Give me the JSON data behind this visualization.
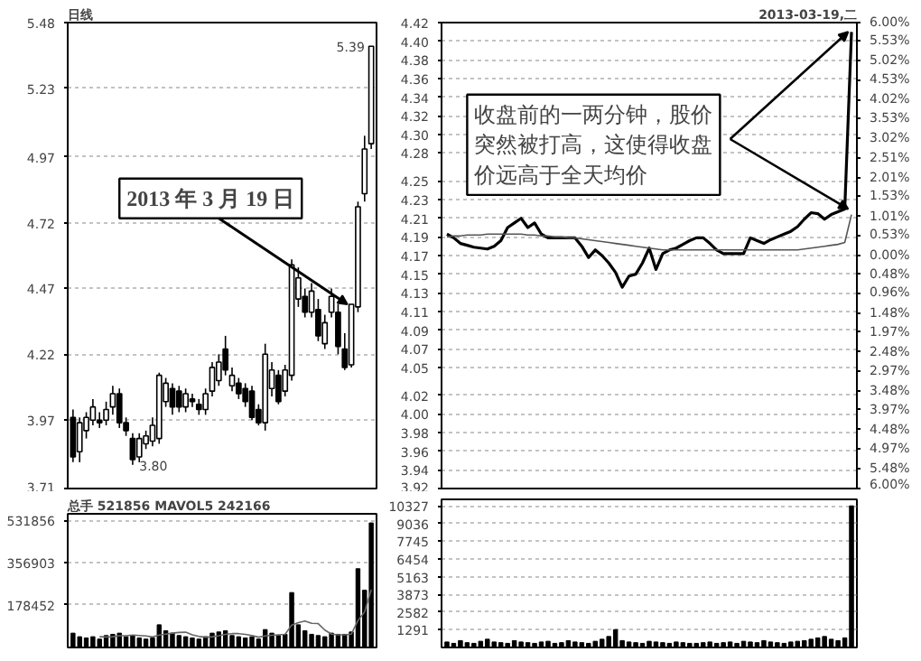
{
  "chart_data": [
    {
      "type": "candlestick",
      "title": "日线",
      "categories": [
        null,
        null,
        null,
        null,
        null,
        null,
        null,
        null,
        null,
        null,
        null,
        null,
        null,
        null,
        null,
        null,
        null,
        null,
        null,
        null,
        null,
        null,
        null,
        null,
        null,
        null,
        null,
        null,
        null,
        null,
        null,
        null,
        null,
        null,
        null,
        null,
        null,
        null,
        null,
        null,
        null,
        null,
        null,
        null,
        null,
        null
      ],
      "ohlc": [
        [
          3.98,
          4.01,
          3.81,
          3.83
        ],
        [
          3.85,
          3.98,
          3.81,
          3.96
        ],
        [
          3.93,
          4.0,
          3.9,
          3.98
        ],
        [
          3.97,
          4.05,
          3.95,
          4.02
        ],
        [
          3.97,
          4.0,
          3.94,
          3.96
        ],
        [
          3.97,
          4.04,
          3.95,
          4.01
        ],
        [
          4.02,
          4.1,
          3.99,
          4.07
        ],
        [
          4.07,
          4.09,
          3.94,
          3.96
        ],
        [
          3.96,
          3.98,
          3.91,
          3.93
        ],
        [
          3.9,
          3.92,
          3.8,
          3.82
        ],
        [
          3.83,
          3.92,
          3.81,
          3.9
        ],
        [
          3.88,
          3.93,
          3.86,
          3.91
        ],
        [
          3.89,
          3.98,
          3.87,
          3.95
        ],
        [
          3.9,
          4.15,
          3.88,
          4.14
        ],
        [
          4.04,
          4.13,
          4.02,
          4.11
        ],
        [
          4.09,
          4.11,
          3.99,
          4.02
        ],
        [
          4.08,
          4.1,
          4.0,
          4.02
        ],
        [
          4.02,
          4.09,
          4.0,
          4.07
        ],
        [
          4.05,
          4.07,
          4.02,
          4.04
        ],
        [
          4.03,
          4.05,
          3.99,
          4.01
        ],
        [
          4.01,
          4.09,
          3.99,
          4.07
        ],
        [
          4.08,
          4.19,
          4.06,
          4.17
        ],
        [
          4.12,
          4.22,
          4.1,
          4.19
        ],
        [
          4.24,
          4.29,
          4.14,
          4.16
        ],
        [
          4.1,
          4.17,
          4.08,
          4.14
        ],
        [
          4.11,
          4.13,
          4.05,
          4.07
        ],
        [
          4.09,
          4.11,
          4.02,
          4.04
        ],
        [
          4.08,
          4.1,
          3.97,
          3.98
        ],
        [
          4.01,
          4.03,
          3.95,
          3.96
        ],
        [
          3.96,
          4.26,
          3.93,
          4.22
        ],
        [
          4.09,
          4.19,
          4.06,
          4.16
        ],
        [
          4.14,
          4.16,
          4.03,
          4.04
        ],
        [
          4.08,
          4.18,
          4.06,
          4.16
        ],
        [
          4.14,
          4.58,
          4.12,
          4.56
        ],
        [
          4.43,
          4.55,
          4.4,
          4.51
        ],
        [
          4.44,
          4.47,
          4.36,
          4.38
        ],
        [
          4.38,
          4.49,
          4.36,
          4.46
        ],
        [
          4.39,
          4.43,
          4.27,
          4.29
        ],
        [
          4.26,
          4.37,
          4.24,
          4.34
        ],
        [
          4.38,
          4.47,
          4.36,
          4.44
        ],
        [
          4.38,
          4.41,
          4.22,
          4.25
        ],
        [
          4.24,
          4.3,
          4.16,
          4.17
        ],
        [
          4.18,
          4.41,
          4.17,
          4.41
        ],
        [
          4.4,
          4.8,
          4.38,
          4.78
        ],
        [
          4.83,
          5.05,
          4.8,
          5.0
        ],
        [
          5.02,
          5.39,
          5.0,
          5.39
        ]
      ],
      "color": "#000000",
      "ylim": [
        3.71,
        5.48
      ],
      "yticks": [
        3.71,
        3.97,
        4.22,
        4.47,
        4.72,
        4.97,
        5.23,
        5.48
      ],
      "grid": "y",
      "tick_labels": "y",
      "annotations": [
        "2013 年 3 月 19 日",
        "5.39",
        "3.80"
      ]
    },
    {
      "type": "bar",
      "title": "总手 521856 MAVOL5 242166",
      "categories": [
        null,
        null,
        null,
        null,
        null,
        null,
        null,
        null,
        null,
        null,
        null,
        null,
        null,
        null,
        null,
        null,
        null,
        null,
        null,
        null,
        null,
        null,
        null,
        null,
        null,
        null,
        null,
        null,
        null,
        null,
        null,
        null,
        null,
        null,
        null,
        null,
        null,
        null,
        null,
        null,
        null,
        null,
        null,
        null,
        null,
        null
      ],
      "series": [
        {
          "type": "bar",
          "color": "#000000",
          "values": [
            60000,
            45000,
            40000,
            45000,
            35000,
            50000,
            55000,
            60000,
            45000,
            50000,
            40000,
            35000,
            40000,
            95000,
            70000,
            60000,
            50000,
            45000,
            40000,
            35000,
            45000,
            60000,
            65000,
            70000,
            50000,
            45000,
            40000,
            45000,
            35000,
            75000,
            60000,
            50000,
            55000,
            230000,
            95000,
            70000,
            55000,
            50000,
            45000,
            60000,
            55000,
            55000,
            65000,
            330000,
            240000,
            521856
          ]
        },
        {
          "type": "line",
          "color": "#666666",
          "values": [
            null,
            null,
            null,
            null,
            45000,
            44000,
            45000,
            49000,
            49000,
            52000,
            50000,
            48000,
            44000,
            52000,
            56000,
            60000,
            63000,
            64000,
            53000,
            46000,
            43000,
            45000,
            49000,
            55000,
            58000,
            58000,
            55000,
            50000,
            43000,
            48000,
            51000,
            53000,
            55000,
            94000,
            104000,
            111000,
            101000,
            100000,
            73000,
            56000,
            53000,
            53000,
            56000,
            113000,
            149000,
            242166
          ]
        }
      ],
      "ylim": [
        0,
        560000
      ],
      "yticks": [
        178452,
        356903,
        531856
      ],
      "grid": "y",
      "tick_labels": "y"
    },
    {
      "type": "line",
      "title": "2013-03-19,二",
      "categories": [
        null,
        null,
        null,
        null,
        null,
        null,
        null,
        null,
        null,
        null,
        null,
        null,
        null,
        null,
        null,
        null,
        null,
        null,
        null,
        null,
        null,
        null,
        null,
        null,
        null,
        null,
        null,
        null,
        null,
        null,
        null,
        null,
        null,
        null,
        null,
        null,
        null,
        null,
        null,
        null,
        null,
        null,
        null,
        null,
        null,
        null,
        null,
        null,
        null,
        null,
        null,
        null,
        null,
        null,
        null,
        null,
        null,
        null,
        null,
        null,
        null
      ],
      "series": [
        {
          "color": "#000000",
          "values": [
            4.193,
            4.189,
            4.183,
            4.181,
            4.179,
            4.178,
            4.177,
            4.18,
            4.186,
            4.2,
            4.205,
            4.21,
            4.2,
            4.205,
            4.193,
            4.189,
            4.189,
            4.189,
            4.189,
            4.189,
            4.18,
            4.168,
            4.176,
            4.17,
            4.162,
            4.152,
            4.136,
            4.148,
            4.15,
            4.162,
            4.178,
            4.155,
            4.172,
            4.176,
            4.178,
            4.182,
            4.186,
            4.189,
            4.189,
            4.183,
            4.176,
            4.172,
            4.172,
            4.172,
            4.172,
            4.189,
            4.186,
            4.183,
            4.187,
            4.19,
            4.193,
            4.196,
            4.201,
            4.209,
            4.216,
            4.215,
            4.209,
            4.214,
            4.217,
            4.22,
            4.41
          ]
        },
        {
          "color": "#555555",
          "values": [
            4.19,
            4.191,
            4.191,
            4.192,
            4.192,
            4.192,
            4.193,
            4.193,
            4.193,
            4.193,
            4.193,
            4.193,
            4.192,
            4.192,
            4.191,
            4.191,
            4.19,
            4.19,
            4.189,
            4.189,
            4.188,
            4.187,
            4.186,
            4.185,
            4.184,
            4.183,
            4.182,
            4.181,
            4.18,
            4.179,
            4.178,
            4.177,
            4.176,
            4.176,
            4.176,
            4.176,
            4.176,
            4.176,
            4.176,
            4.176,
            4.176,
            4.176,
            4.176,
            4.176,
            4.176,
            4.176,
            4.176,
            4.176,
            4.176,
            4.176,
            4.176,
            4.176,
            4.176,
            4.177,
            4.178,
            4.179,
            4.18,
            4.181,
            4.182,
            4.184,
            4.214
          ]
        }
      ],
      "ylim": [
        3.92,
        4.42
      ],
      "yticks": [
        {
          "value": 4.42,
          "label": "4.42"
        },
        {
          "value": 4.4,
          "label": "4.40"
        },
        {
          "value": 4.38,
          "label": "4.38"
        },
        {
          "value": 4.36,
          "label": "4.36"
        },
        {
          "value": 4.34,
          "label": "4.34"
        },
        {
          "value": 4.32,
          "label": "4.32"
        },
        {
          "value": 4.3,
          "label": "4.30"
        },
        {
          "value": 4.28,
          "label": "4.28"
        },
        {
          "value": 4.25,
          "label": "4.25"
        },
        {
          "value": 4.23,
          "label": "4.23"
        },
        {
          "value": 4.21,
          "label": "4.21"
        },
        {
          "value": 4.19,
          "label": "4.19"
        },
        {
          "value": 4.17,
          "label": "4.17"
        },
        {
          "value": 4.15,
          "label": "4.15"
        },
        {
          "value": 4.13,
          "label": "4.13"
        },
        {
          "value": 4.11,
          "label": "4.11"
        },
        {
          "value": 4.09,
          "label": "4.09"
        },
        {
          "value": 4.07,
          "label": "4.07"
        },
        {
          "value": 4.05,
          "label": "4.05"
        },
        {
          "value": 4.02,
          "label": "4.02"
        },
        {
          "value": 4.0,
          "label": "4.00"
        },
        {
          "value": 3.98,
          "label": "3.98"
        },
        {
          "value": 3.96,
          "label": "3.96"
        },
        {
          "value": 3.94,
          "label": "3.94"
        },
        {
          "value": 3.92,
          "label": "3.92"
        }
      ],
      "y2lim": [
        -6,
        6
      ],
      "y2ticks": [
        {
          "value": 6,
          "label": "6.00%"
        },
        {
          "value": 5.53,
          "label": "5.53%"
        },
        {
          "value": 5.02,
          "label": "5.02%"
        },
        {
          "value": 4.53,
          "label": "4.53%"
        },
        {
          "value": 4.02,
          "label": "4.02%"
        },
        {
          "value": 3.53,
          "label": "3.53%"
        },
        {
          "value": 3.02,
          "label": "3.02%"
        },
        {
          "value": 2.51,
          "label": "2.51%"
        },
        {
          "value": 2.01,
          "label": "2.01%"
        },
        {
          "value": 1.53,
          "label": "1.53%"
        },
        {
          "value": 1.01,
          "label": "1.01%"
        },
        {
          "value": 0.53,
          "label": "0.53%"
        },
        {
          "value": 0,
          "label": "0.00%"
        },
        {
          "value": -0.48,
          "label": "0.48%"
        },
        {
          "value": -0.96,
          "label": "0.96%"
        },
        {
          "value": -1.48,
          "label": "1.48%"
        },
        {
          "value": -1.97,
          "label": "1.97%"
        },
        {
          "value": -2.48,
          "label": "2.48%"
        },
        {
          "value": -2.97,
          "label": "2.97%"
        },
        {
          "value": -3.48,
          "label": "3.48%"
        },
        {
          "value": -3.97,
          "label": "3.97%"
        },
        {
          "value": -4.48,
          "label": "4.48%"
        },
        {
          "value": -4.97,
          "label": "4.97%"
        },
        {
          "value": -5.48,
          "label": "5.48%"
        },
        {
          "value": -6,
          "label": "6.00%"
        }
      ],
      "grid": "y",
      "line_style": "solid",
      "tick_labels": "y",
      "annotations": [
        "收盘前的一两分钟，股价突然被打高，这使得收盘价远高于全天均价"
      ]
    },
    {
      "type": "bar",
      "categories": [
        null,
        null,
        null,
        null,
        null,
        null,
        null,
        null,
        null,
        null,
        null,
        null,
        null,
        null,
        null,
        null,
        null,
        null,
        null,
        null,
        null,
        null,
        null,
        null,
        null,
        null,
        null,
        null,
        null,
        null,
        null,
        null,
        null,
        null,
        null,
        null,
        null,
        null,
        null,
        null,
        null,
        null,
        null,
        null,
        null,
        null,
        null,
        null,
        null,
        null,
        null,
        null,
        null,
        null,
        null,
        null,
        null,
        null,
        null,
        null,
        null
      ],
      "values": [
        400,
        300,
        500,
        350,
        300,
        450,
        600,
        400,
        350,
        300,
        500,
        400,
        350,
        300,
        400,
        450,
        300,
        350,
        500,
        400,
        350,
        300,
        450,
        600,
        800,
        1300,
        500,
        400,
        350,
        300,
        450,
        400,
        350,
        300,
        400,
        350,
        300,
        300,
        350,
        400,
        300,
        350,
        400,
        300,
        450,
        400,
        350,
        500,
        400,
        350,
        300,
        400,
        450,
        500,
        600,
        700,
        800,
        600,
        500,
        700,
        10327
      ],
      "color": "#000000",
      "ylim": [
        0,
        10800
      ],
      "yticks": [
        1291,
        2582,
        3873,
        5163,
        6454,
        7745,
        9036,
        10327
      ],
      "grid": "y",
      "tick_labels": "y"
    }
  ]
}
